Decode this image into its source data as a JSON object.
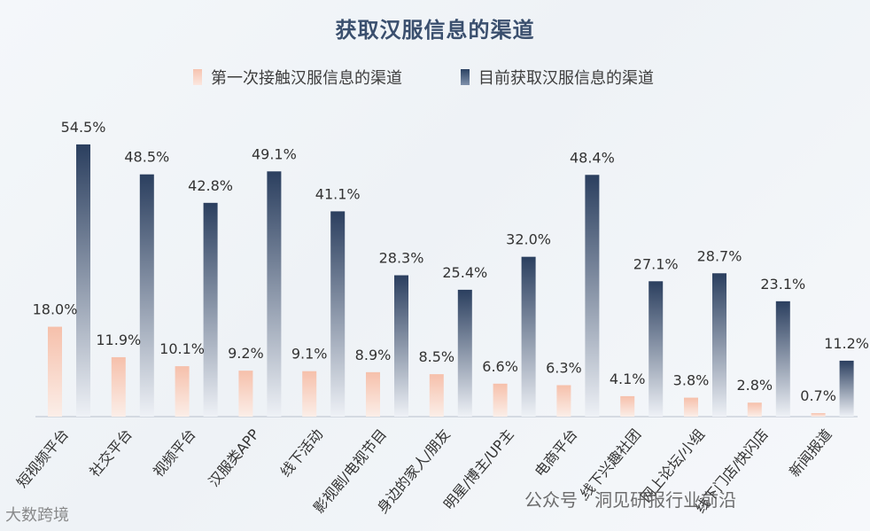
{
  "title": "获取汉服信息的渠道",
  "legend": {
    "first": "第一次接触汉服信息的渠道",
    "current": "目前获取汉服信息的渠道"
  },
  "colors": {
    "first_top": "#f6c0ab",
    "first_bottom": "#fbeee8",
    "current_top": "#2b3f5f",
    "current_bottom": "#eef1f6",
    "title": "#3a4f6e"
  },
  "watermarks": {
    "left": "大数跨境",
    "right": "公众号 · 洞见研报行业前沿"
  },
  "chart_data": {
    "type": "bar",
    "title": "获取汉服信息的渠道",
    "categories": [
      "短视频平台",
      "社交平台",
      "视频平台",
      "汉服类APP",
      "线下活动",
      "影视剧/电视节目",
      "身边的家人/朋友",
      "明星/博主/UP主",
      "电商平台",
      "线下兴趣社团",
      "网上论坛/小组",
      "线下门店/快闪店",
      "新闻报道"
    ],
    "series": [
      {
        "name": "第一次接触汉服信息的渠道",
        "values": [
          18.0,
          11.9,
          10.1,
          9.2,
          9.1,
          8.9,
          8.5,
          6.6,
          6.3,
          4.1,
          3.8,
          2.8,
          0.7
        ]
      },
      {
        "name": "目前获取汉服信息的渠道",
        "values": [
          54.5,
          48.5,
          42.8,
          49.1,
          41.1,
          28.3,
          25.4,
          32.0,
          48.4,
          27.1,
          28.7,
          23.1,
          11.2
        ]
      }
    ],
    "value_labels": [
      [
        "18.0%",
        "11.9%",
        "10.1%",
        "9.2%",
        "9.1%",
        "8.9%",
        "8.5%",
        "6.6%",
        "6.3%",
        "4.1%",
        "3.8%",
        "2.8%",
        "0.7%"
      ],
      [
        "54.5%",
        "48.5%",
        "42.8%",
        "49.1%",
        "41.1%",
        "28.3%",
        "25.4%",
        "32.0%",
        "48.4%",
        "27.1%",
        "28.7%",
        "23.1%",
        "11.2%"
      ]
    ],
    "ylim": [
      0,
      60
    ],
    "grid": false,
    "legend_position": "top-center"
  }
}
